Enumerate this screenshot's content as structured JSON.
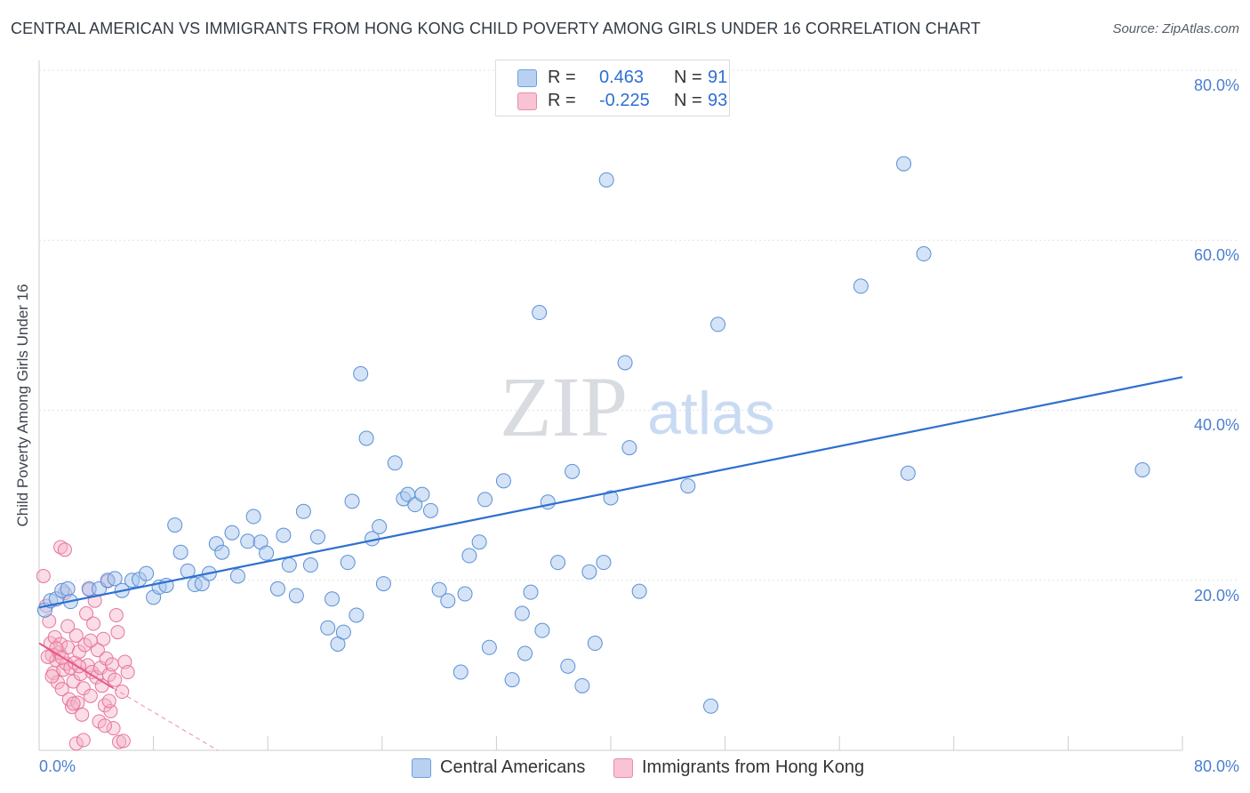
{
  "title": "CENTRAL AMERICAN VS IMMIGRANTS FROM HONG KONG CHILD POVERTY AMONG GIRLS UNDER 16 CORRELATION CHART",
  "source": "Source: ZipAtlas.com",
  "watermark": {
    "zip": "ZIP",
    "atlas": "atlas"
  },
  "legend": {
    "rows": [
      {
        "r_label": "R =",
        "r_value": "0.463",
        "n_label": "N =",
        "n_value": "91"
      },
      {
        "r_label": "R =",
        "r_value": "-0.225",
        "n_label": "N =",
        "n_value": "93"
      }
    ]
  },
  "colors": {
    "blue_fill": "#a9c8ee",
    "blue_stroke": "#5b8fd6",
    "blue_line": "#2e6fd0",
    "pink_fill": "#f5b3c8",
    "pink_stroke": "#e8749a",
    "pink_line": "#e8588a",
    "grid": "#dde1e6",
    "axis": "#c9cdd3"
  },
  "chart_data": {
    "type": "scatter",
    "title": "CENTRAL AMERICAN VS IMMIGRANTS FROM HONG KONG CHILD POVERTY AMONG GIRLS UNDER 16 CORRELATION CHART",
    "xlabel": "",
    "ylabel": "Child Poverty Among Girls Under 16",
    "xlim": [
      0,
      80
    ],
    "ylim": [
      0,
      80
    ],
    "x_tick_labels": [
      "0.0%",
      "80.0%"
    ],
    "y_tick_labels": [
      "20.0%",
      "40.0%",
      "60.0%",
      "80.0%"
    ],
    "y_ticks": [
      20,
      40,
      60,
      80
    ],
    "legend_position": "top-center",
    "series": [
      {
        "name": "Central Americans",
        "r": 0.463,
        "n": 91,
        "trend": {
          "x": [
            0,
            80
          ],
          "y": [
            16.8,
            43.9
          ]
        },
        "points": [
          [
            0.4,
            16.5
          ],
          [
            0.8,
            17.6
          ],
          [
            1.2,
            17.8
          ],
          [
            1.6,
            18.8
          ],
          [
            2.0,
            19.0
          ],
          [
            2.2,
            17.5
          ],
          [
            3.5,
            19.0
          ],
          [
            4.2,
            19.0
          ],
          [
            4.8,
            20.0
          ],
          [
            5.3,
            20.2
          ],
          [
            5.8,
            18.8
          ],
          [
            6.5,
            20.0
          ],
          [
            7.0,
            20.1
          ],
          [
            7.5,
            20.8
          ],
          [
            8.0,
            18.0
          ],
          [
            8.4,
            19.2
          ],
          [
            8.9,
            19.4
          ],
          [
            9.5,
            26.5
          ],
          [
            9.9,
            23.3
          ],
          [
            10.4,
            21.1
          ],
          [
            10.9,
            19.5
          ],
          [
            11.4,
            19.6
          ],
          [
            11.9,
            20.8
          ],
          [
            12.4,
            24.3
          ],
          [
            12.8,
            23.3
          ],
          [
            13.5,
            25.6
          ],
          [
            13.9,
            20.5
          ],
          [
            14.6,
            24.6
          ],
          [
            15.0,
            27.5
          ],
          [
            15.5,
            24.5
          ],
          [
            15.9,
            23.2
          ],
          [
            16.7,
            19.0
          ],
          [
            17.1,
            25.3
          ],
          [
            17.5,
            21.8
          ],
          [
            18.0,
            18.2
          ],
          [
            18.5,
            28.1
          ],
          [
            19.0,
            21.8
          ],
          [
            19.5,
            25.1
          ],
          [
            20.2,
            14.4
          ],
          [
            20.5,
            17.8
          ],
          [
            20.9,
            12.5
          ],
          [
            21.3,
            13.9
          ],
          [
            21.6,
            22.1
          ],
          [
            21.9,
            29.3
          ],
          [
            22.2,
            15.9
          ],
          [
            22.5,
            44.3
          ],
          [
            22.9,
            36.7
          ],
          [
            23.3,
            24.9
          ],
          [
            23.8,
            26.3
          ],
          [
            24.1,
            19.6
          ],
          [
            24.9,
            33.8
          ],
          [
            25.5,
            29.6
          ],
          [
            25.8,
            30.1
          ],
          [
            26.3,
            28.9
          ],
          [
            26.8,
            30.1
          ],
          [
            27.4,
            28.2
          ],
          [
            28.0,
            18.9
          ],
          [
            28.6,
            17.6
          ],
          [
            29.5,
            9.2
          ],
          [
            29.8,
            18.4
          ],
          [
            30.1,
            22.9
          ],
          [
            30.8,
            24.5
          ],
          [
            31.2,
            29.5
          ],
          [
            31.5,
            12.1
          ],
          [
            32.5,
            31.7
          ],
          [
            33.1,
            8.3
          ],
          [
            33.8,
            16.1
          ],
          [
            34.0,
            11.4
          ],
          [
            34.4,
            18.6
          ],
          [
            35.0,
            51.5
          ],
          [
            35.2,
            14.1
          ],
          [
            35.6,
            29.2
          ],
          [
            36.3,
            22.1
          ],
          [
            37.0,
            9.9
          ],
          [
            37.3,
            32.8
          ],
          [
            38.0,
            7.6
          ],
          [
            38.5,
            21.0
          ],
          [
            38.9,
            12.6
          ],
          [
            39.5,
            22.1
          ],
          [
            39.7,
            67.1
          ],
          [
            40.0,
            29.7
          ],
          [
            41.0,
            45.6
          ],
          [
            41.3,
            35.6
          ],
          [
            42.0,
            18.7
          ],
          [
            45.4,
            31.1
          ],
          [
            47.0,
            5.2
          ],
          [
            47.5,
            50.1
          ],
          [
            57.5,
            54.6
          ],
          [
            60.5,
            69.0
          ],
          [
            60.8,
            32.6
          ],
          [
            61.9,
            58.4
          ],
          [
            77.2,
            33.0
          ]
        ]
      },
      {
        "name": "Immigrants from Hong Kong",
        "r": -0.225,
        "n": 93,
        "trend": {
          "x": [
            0,
            5.2
          ],
          "y": [
            12.6,
            7.3
          ]
        },
        "trend_dashed": {
          "x": [
            5.2,
            12.5
          ],
          "y": [
            7.3,
            0
          ]
        },
        "points": [
          [
            0.3,
            20.5
          ],
          [
            0.5,
            17.0
          ],
          [
            0.7,
            15.2
          ],
          [
            0.8,
            12.6
          ],
          [
            0.9,
            11.2
          ],
          [
            1.0,
            9.1
          ],
          [
            1.1,
            13.3
          ],
          [
            1.2,
            10.6
          ],
          [
            1.3,
            8.0
          ],
          [
            1.4,
            11.5
          ],
          [
            1.5,
            12.5
          ],
          [
            1.6,
            7.2
          ],
          [
            1.7,
            9.5
          ],
          [
            1.8,
            18.5
          ],
          [
            1.9,
            10.2
          ],
          [
            2.0,
            12.1
          ],
          [
            2.1,
            6.0
          ],
          [
            2.2,
            9.7
          ],
          [
            2.3,
            5.1
          ],
          [
            2.4,
            8.1
          ],
          [
            2.5,
            10.3
          ],
          [
            2.6,
            13.5
          ],
          [
            2.7,
            5.6
          ],
          [
            2.8,
            11.6
          ],
          [
            2.9,
            9.0
          ],
          [
            3.0,
            4.2
          ],
          [
            3.1,
            7.3
          ],
          [
            3.2,
            12.4
          ],
          [
            3.3,
            16.1
          ],
          [
            3.4,
            10.0
          ],
          [
            3.5,
            18.9
          ],
          [
            3.6,
            6.4
          ],
          [
            3.7,
            9.2
          ],
          [
            3.8,
            14.9
          ],
          [
            3.9,
            17.6
          ],
          [
            4.0,
            8.6
          ],
          [
            4.1,
            11.8
          ],
          [
            4.2,
            3.4
          ],
          [
            4.3,
            9.7
          ],
          [
            4.4,
            7.6
          ],
          [
            4.5,
            13.1
          ],
          [
            4.6,
            5.3
          ],
          [
            4.7,
            10.8
          ],
          [
            4.8,
            19.9
          ],
          [
            4.9,
            8.9
          ],
          [
            5.0,
            4.6
          ],
          [
            5.1,
            10.1
          ],
          [
            5.2,
            2.6
          ],
          [
            5.3,
            8.3
          ],
          [
            5.4,
            15.9
          ],
          [
            5.5,
            13.9
          ],
          [
            5.6,
            1.0
          ],
          [
            5.8,
            6.9
          ],
          [
            6.0,
            10.4
          ],
          [
            6.2,
            9.2
          ],
          [
            1.5,
            23.9
          ],
          [
            1.8,
            23.6
          ],
          [
            2.6,
            0.8
          ],
          [
            3.1,
            1.2
          ],
          [
            5.9,
            1.1
          ],
          [
            4.9,
            5.8
          ],
          [
            4.6,
            2.9
          ],
          [
            2.4,
            5.5
          ],
          [
            1.2,
            12.0
          ],
          [
            0.6,
            11.0
          ],
          [
            0.9,
            8.7
          ],
          [
            1.6,
            10.9
          ],
          [
            2.0,
            14.6
          ],
          [
            2.8,
            9.9
          ],
          [
            3.6,
            12.9
          ]
        ]
      }
    ]
  },
  "bottom_legend": [
    "Central Americans",
    "Immigrants from Hong Kong"
  ]
}
